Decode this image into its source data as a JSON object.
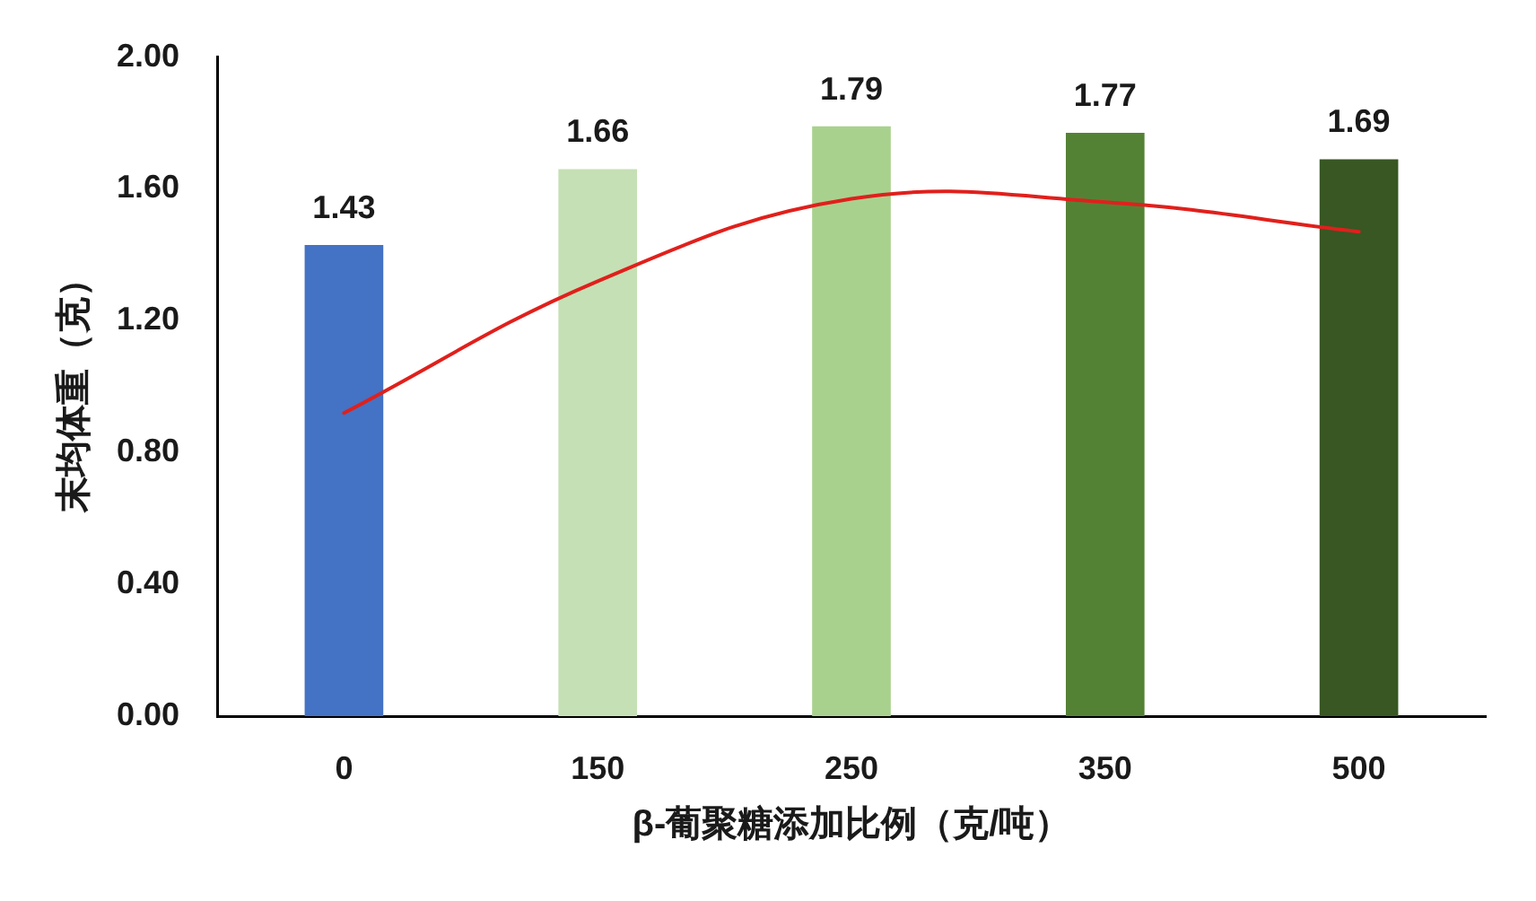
{
  "chart_data": {
    "type": "bar",
    "xlabel": "β-葡聚糖添加比例（克/吨）",
    "ylabel": "末均体重（克）",
    "categories": [
      "0",
      "150",
      "250",
      "350",
      "500"
    ],
    "series": [
      {
        "colors": [
          "#4472c4",
          "#c5e0b4",
          "#a9d18e",
          "#548235",
          "#385723"
        ],
        "values": [
          1.43,
          1.66,
          1.79,
          1.77,
          1.69
        ],
        "value_labels": [
          "1.43",
          "1.66",
          "1.79",
          "1.77",
          "1.69"
        ]
      },
      {
        "type": "line",
        "x": [
          "0",
          "150",
          "250",
          "350",
          "500"
        ],
        "values": [
          0.92,
          1.32,
          1.57,
          1.56,
          1.47
        ],
        "color": "#e0201c"
      }
    ],
    "ylim": [
      0,
      2
    ],
    "yticks": [
      {
        "value": 0,
        "label": "0.00"
      },
      {
        "value": 0.4,
        "label": "0.40"
      },
      {
        "value": 0.8,
        "label": "0.80"
      },
      {
        "value": 1.2,
        "label": "1.20"
      },
      {
        "value": 1.6,
        "label": "1.60"
      },
      {
        "value": 2,
        "label": "2.00"
      }
    ],
    "grid": false,
    "marker": "none"
  }
}
